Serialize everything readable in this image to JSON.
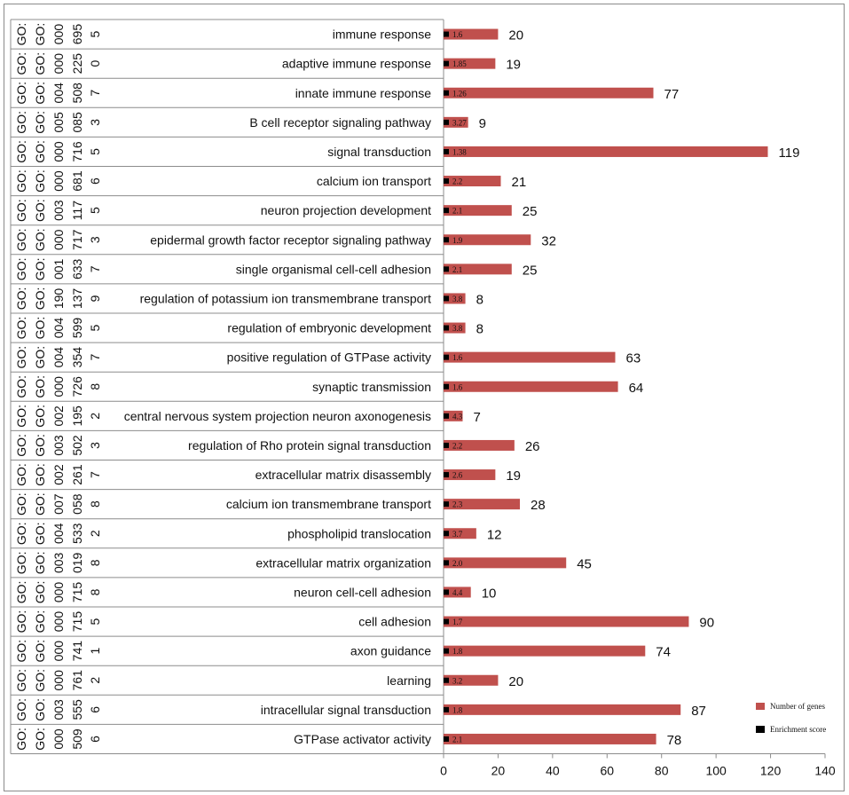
{
  "chart_data": {
    "type": "bar",
    "orientation": "horizontal",
    "xlim": [
      0,
      140
    ],
    "xticks": [
      0,
      20,
      40,
      60,
      80,
      100,
      120,
      140
    ],
    "colors": {
      "genes": "#c0504d",
      "enrichment": "#000000"
    },
    "legend": {
      "position": "bottom-right",
      "genes_label": "Number of genes",
      "enrichment_label": "Enrichment score"
    },
    "rows": [
      {
        "go": [
          "GO:",
          "GO:",
          "000",
          "695",
          "5"
        ],
        "term": "immune response",
        "genes": 20,
        "enrichment": "1.6"
      },
      {
        "go": [
          "GO:",
          "GO:",
          "000",
          "225",
          "0"
        ],
        "term": "adaptive immune response",
        "genes": 19,
        "enrichment": "1.85"
      },
      {
        "go": [
          "GO:",
          "GO:",
          "004",
          "508",
          "7"
        ],
        "term": "innate immune response",
        "genes": 77,
        "enrichment": "1.26"
      },
      {
        "go": [
          "GO:",
          "GO:",
          "005",
          "085",
          "3"
        ],
        "term": "B cell receptor signaling pathway",
        "genes": 9,
        "enrichment": "3.27"
      },
      {
        "go": [
          "GO:",
          "GO:",
          "000",
          "716",
          "5"
        ],
        "term": "signal transduction",
        "genes": 119,
        "enrichment": "1.38"
      },
      {
        "go": [
          "GO:",
          "GO:",
          "000",
          "681",
          "6"
        ],
        "term": "calcium ion transport",
        "genes": 21,
        "enrichment": "2.2"
      },
      {
        "go": [
          "GO:",
          "GO:",
          "003",
          "117",
          "5"
        ],
        "term": "neuron projection development",
        "genes": 25,
        "enrichment": "2.1"
      },
      {
        "go": [
          "GO:",
          "GO:",
          "000",
          "717",
          "3"
        ],
        "term": "epidermal growth factor receptor signaling pathway",
        "genes": 32,
        "enrichment": "1.9"
      },
      {
        "go": [
          "GO:",
          "GO:",
          "001",
          "633",
          "7"
        ],
        "term": "single organismal cell-cell adhesion",
        "genes": 25,
        "enrichment": "2.1"
      },
      {
        "go": [
          "GO:",
          "GO:",
          "190",
          "137",
          "9"
        ],
        "term": "regulation of potassium ion transmembrane transport",
        "genes": 8,
        "enrichment": "3.8"
      },
      {
        "go": [
          "GO:",
          "GO:",
          "004",
          "599",
          "5"
        ],
        "term": "regulation of embryonic development",
        "genes": 8,
        "enrichment": "3.8"
      },
      {
        "go": [
          "GO:",
          "GO:",
          "004",
          "354",
          "7"
        ],
        "term": "positive regulation of GTPase activity",
        "genes": 63,
        "enrichment": "1.6"
      },
      {
        "go": [
          "GO:",
          "GO:",
          "000",
          "726",
          "8"
        ],
        "term": "synaptic transmission",
        "genes": 64,
        "enrichment": "1.6"
      },
      {
        "go": [
          "GO:",
          "GO:",
          "002",
          "195",
          "2"
        ],
        "term": "central nervous system projection neuron axonogenesis",
        "genes": 7,
        "enrichment": "4.3"
      },
      {
        "go": [
          "GO:",
          "GO:",
          "003",
          "502",
          "3"
        ],
        "term": "regulation of Rho protein signal transduction",
        "genes": 26,
        "enrichment": "2.2"
      },
      {
        "go": [
          "GO:",
          "GO:",
          "002",
          "261",
          "7"
        ],
        "term": "extracellular matrix disassembly",
        "genes": 19,
        "enrichment": "2.6"
      },
      {
        "go": [
          "GO:",
          "GO:",
          "007",
          "058",
          "8"
        ],
        "term": "calcium ion transmembrane transport",
        "genes": 28,
        "enrichment": "2.3"
      },
      {
        "go": [
          "GO:",
          "GO:",
          "004",
          "533",
          "2"
        ],
        "term": "phospholipid translocation",
        "genes": 12,
        "enrichment": "3.7"
      },
      {
        "go": [
          "GO:",
          "GO:",
          "003",
          "019",
          "8"
        ],
        "term": "extracellular matrix organization",
        "genes": 45,
        "enrichment": "2.0"
      },
      {
        "go": [
          "GO:",
          "GO:",
          "000",
          "715",
          "8"
        ],
        "term": "neuron cell-cell adhesion",
        "genes": 10,
        "enrichment": "4.4"
      },
      {
        "go": [
          "GO:",
          "GO:",
          "000",
          "715",
          "5"
        ],
        "term": "cell adhesion",
        "genes": 90,
        "enrichment": "1.7"
      },
      {
        "go": [
          "GO:",
          "GO:",
          "000",
          "741",
          "1"
        ],
        "term": "axon guidance",
        "genes": 74,
        "enrichment": "1.8"
      },
      {
        "go": [
          "GO:",
          "GO:",
          "000",
          "761",
          "2"
        ],
        "term": "learning",
        "genes": 20,
        "enrichment": "3.2"
      },
      {
        "go": [
          "GO:",
          "GO:",
          "003",
          "555",
          "6"
        ],
        "term": "intracellular signal transduction",
        "genes": 87,
        "enrichment": "1.8"
      },
      {
        "go": [
          "GO:",
          "GO:",
          "000",
          "509",
          "6"
        ],
        "term": "GTPase activator activity",
        "genes": 78,
        "enrichment": "2.1"
      }
    ]
  }
}
